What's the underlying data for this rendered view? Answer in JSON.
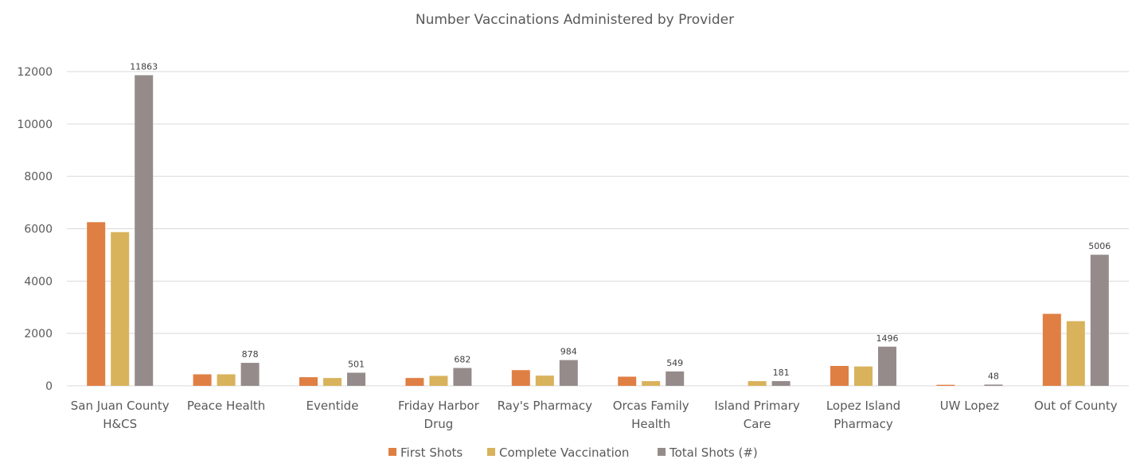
{
  "chart_data": {
    "type": "bar",
    "title": "Number Vaccinations Administered by Provider",
    "xlabel": "",
    "ylabel": "",
    "ylim": [
      0,
      12000
    ],
    "yticks": [
      0,
      2000,
      4000,
      6000,
      8000,
      10000,
      12000
    ],
    "grid": true,
    "legend_position": "bottom",
    "categories": [
      [
        "San Juan County",
        "H&CS"
      ],
      [
        "Peace Health"
      ],
      [
        "Eventide"
      ],
      [
        "Friday Harbor",
        "Drug"
      ],
      [
        "Ray's Pharmacy"
      ],
      [
        "Orcas Family",
        "Health"
      ],
      [
        "Island Primary",
        "Care"
      ],
      [
        "Lopez Island",
        "Pharmacy"
      ],
      [
        "UW Lopez"
      ],
      [
        "Out of County"
      ]
    ],
    "series": [
      {
        "name": "First Shots",
        "color": "#e07f44",
        "values": [
          6250,
          440,
          330,
          300,
          600,
          350,
          0,
          760,
          40,
          2750
        ],
        "labels": false
      },
      {
        "name": "Complete Vaccination",
        "color": "#d9b25c",
        "values": [
          5870,
          440,
          300,
          380,
          390,
          180,
          180,
          740,
          0,
          2470
        ],
        "labels": false
      },
      {
        "name": "Total Shots (#)",
        "color": "#968b8b",
        "values": [
          11863,
          878,
          501,
          682,
          984,
          549,
          181,
          1496,
          48,
          5006
        ],
        "labels": true
      }
    ]
  }
}
